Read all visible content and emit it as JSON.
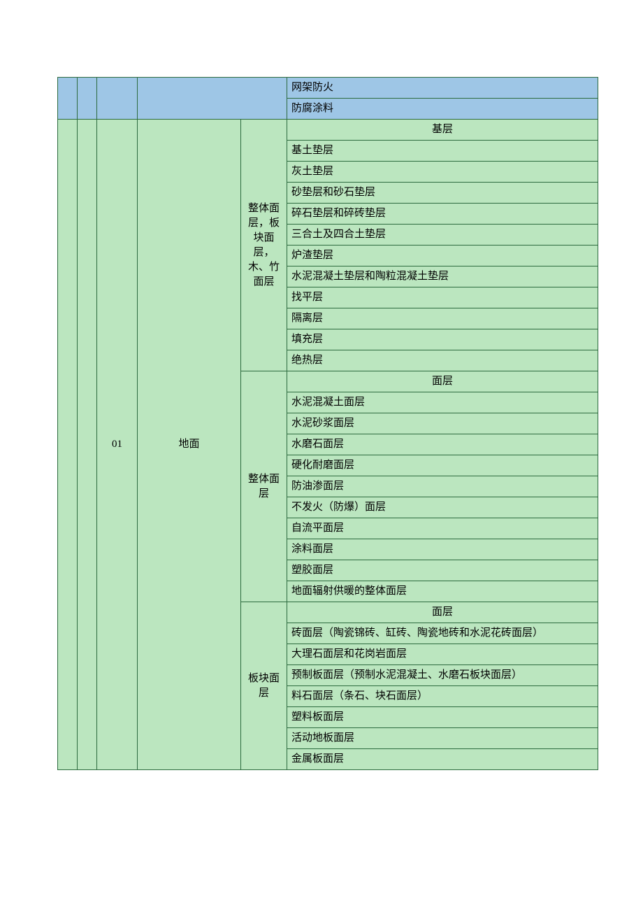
{
  "colors": {
    "blue_bg": "#9ec6e6",
    "green_bg": "#bbe6bf",
    "border": "#2d6b3f",
    "text": "#000000"
  },
  "topRows": [
    "网架防火",
    "防腐涂料"
  ],
  "code": "01",
  "name": "地面",
  "groups": [
    {
      "label": "整体面层，板块面层，木、竹面层",
      "header": "基层",
      "items": [
        "基土垫层",
        "灰土垫层",
        "砂垫层和砂石垫层",
        "碎石垫层和碎砖垫层",
        "三合土及四合土垫层",
        "炉渣垫层",
        "水泥混凝土垫层和陶粒混凝土垫层",
        "找平层",
        "隔离层",
        "填充层",
        "绝热层"
      ]
    },
    {
      "label": "整体面层",
      "header": "面层",
      "items": [
        "水泥混凝土面层",
        "水泥砂浆面层",
        "水磨石面层",
        "硬化耐磨面层",
        "防油渗面层",
        "不发火（防爆）面层",
        "自流平面层",
        "涂料面层",
        "塑胶面层",
        "地面辐射供暖的整体面层"
      ]
    },
    {
      "label": "板块面层",
      "header": "面层",
      "items": [
        "砖面层（陶瓷锦砖、缸砖、陶瓷地砖和水泥花砖面层）",
        "大理石面层和花岗岩面层",
        "预制板面层（预制水泥混凝土、水磨石板块面层）",
        "料石面层（条石、块石面层）",
        "塑料板面层",
        "活动地板面层",
        "金属板面层"
      ]
    }
  ]
}
